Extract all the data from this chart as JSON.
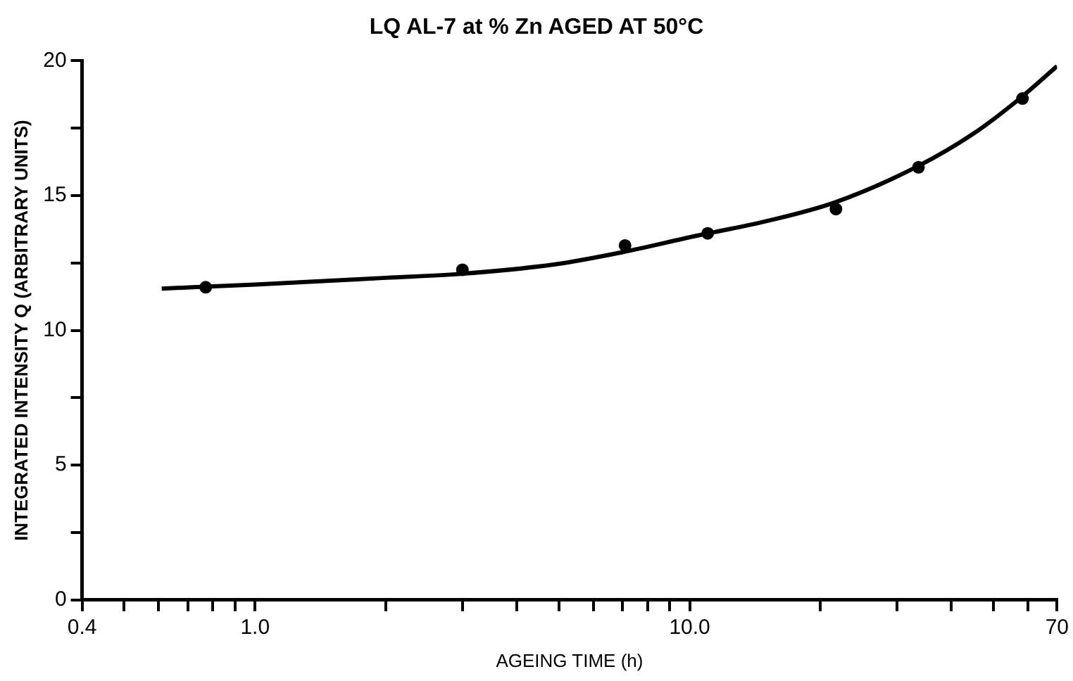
{
  "chart_data": {
    "type": "scatter",
    "title": "LQ AL-7 at % Zn AGED AT 50°C",
    "xlabel": "AGEING TIME (h)",
    "ylabel": "INTEGRATED INTENSITY Q (ARBITRARY UNITS)",
    "log": "x",
    "grid": false,
    "legend": false,
    "marker": "circle",
    "xlim": [
      0.4,
      70
    ],
    "xticks": [
      0.4,
      {
        "value": 0.5,
        "label": null
      },
      {
        "value": 0.6,
        "label": null
      },
      {
        "value": 0.7,
        "label": null
      },
      {
        "value": 0.8,
        "label": null
      },
      {
        "value": 0.9,
        "label": null
      },
      {
        "value": 1,
        "label": "1.0"
      },
      {
        "value": 2,
        "label": null
      },
      {
        "value": 3,
        "label": null
      },
      {
        "value": 4,
        "label": null
      },
      {
        "value": 5,
        "label": null
      },
      {
        "value": 6,
        "label": null
      },
      {
        "value": 7,
        "label": null
      },
      {
        "value": 8,
        "label": null
      },
      {
        "value": 9,
        "label": null
      },
      {
        "value": 10,
        "label": "10.0"
      },
      {
        "value": 20,
        "label": null
      },
      {
        "value": 30,
        "label": null
      },
      {
        "value": 40,
        "label": null
      },
      {
        "value": 50,
        "label": null
      },
      {
        "value": 60,
        "label": null
      },
      70
    ],
    "ylim": [
      0,
      20
    ],
    "yticks": [
      0,
      {
        "value": 2.5,
        "label": null
      },
      5,
      {
        "value": 7.5,
        "label": null
      },
      10,
      {
        "value": 12.5,
        "label": null
      },
      15,
      {
        "value": 17.5,
        "label": null
      },
      20
    ],
    "series": [
      {
        "type": "scatter",
        "color": "#000000",
        "x": [
          0.77,
          3.0,
          7.1,
          11.0,
          21.7,
          33.6,
          58.3
        ],
        "values": [
          11.6,
          12.25,
          13.15,
          13.6,
          14.5,
          16.05,
          18.6
        ]
      },
      {
        "type": "line",
        "color": "#000000",
        "marker": "none",
        "x": [
          0.61,
          1,
          2,
          3,
          4.9,
          7,
          10.3,
          15,
          21.6,
          33.6,
          45,
          57.5,
          70
        ],
        "values": [
          11.55,
          11.7,
          11.95,
          12.1,
          12.45,
          12.9,
          13.5,
          14.05,
          14.75,
          16.1,
          17.3,
          18.6,
          19.8
        ]
      }
    ]
  }
}
